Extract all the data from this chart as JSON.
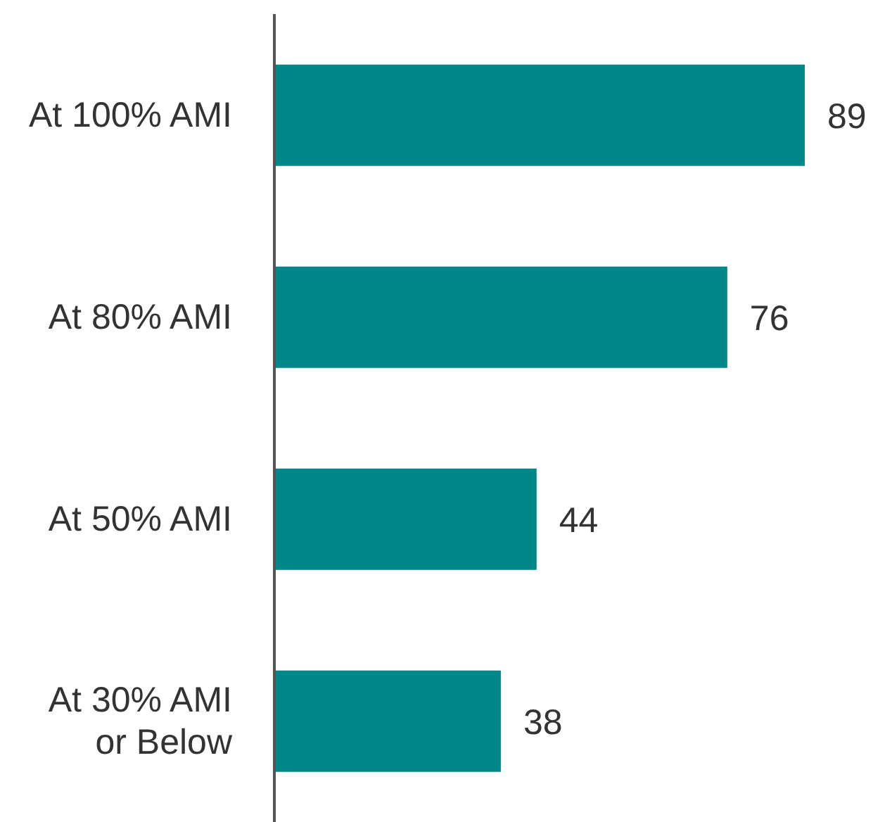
{
  "chart_data": {
    "type": "bar",
    "orientation": "horizontal",
    "categories": [
      "At 100% AMI",
      "At 80% AMI",
      "At 50% AMI",
      "At 30% AMI or Below"
    ],
    "values": [
      89,
      76,
      44,
      38
    ],
    "color": "#00878a",
    "data_labels": true,
    "grid": false,
    "legend": false
  }
}
